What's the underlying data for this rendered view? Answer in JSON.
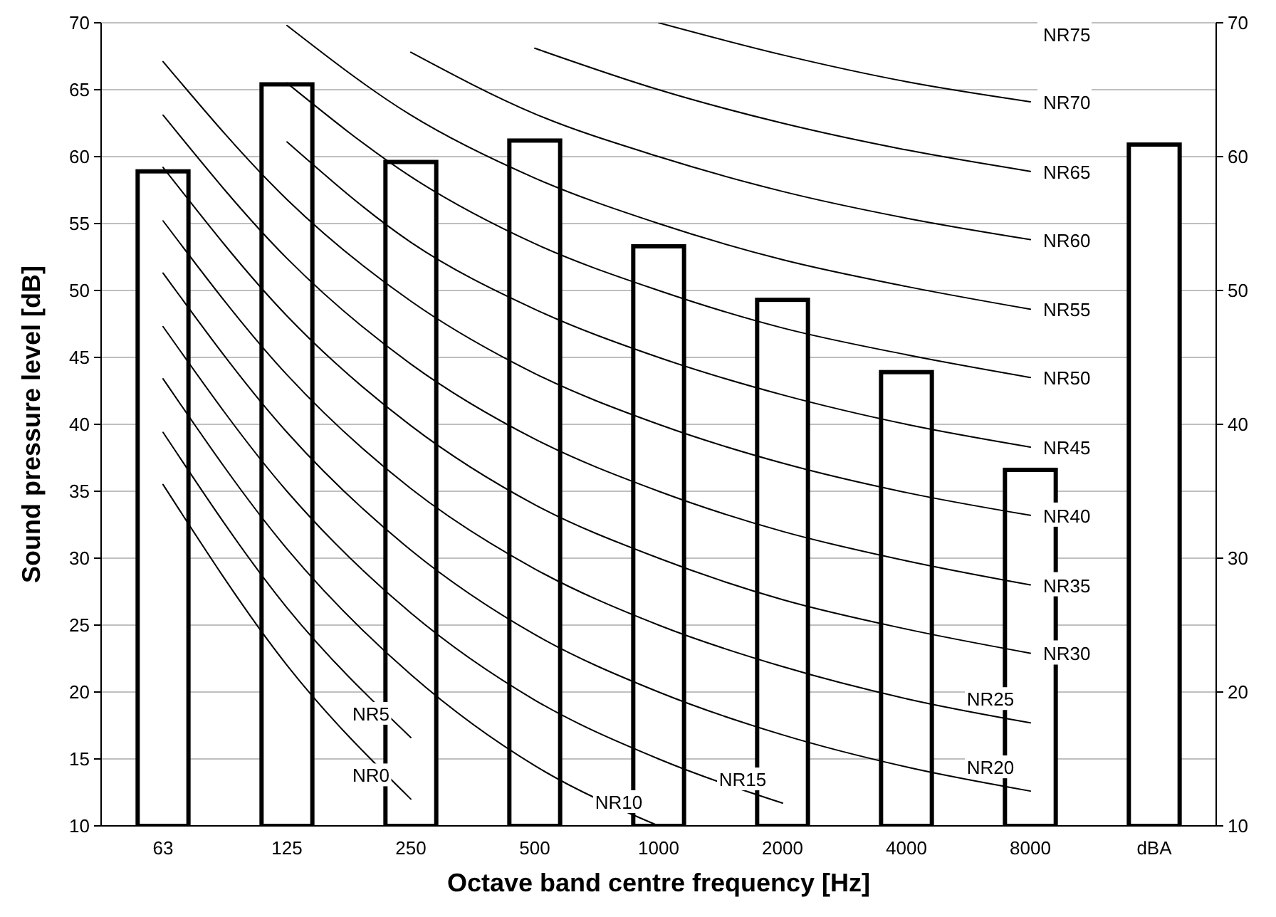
{
  "chart_data": {
    "type": "bar",
    "xlabel": "Octave band centre frequency [Hz]",
    "ylabel": "Sound pressure level [dB]",
    "categories": [
      "63",
      "125",
      "250",
      "500",
      "1000",
      "2000",
      "4000",
      "8000",
      "dBA"
    ],
    "ylim": [
      10,
      70
    ],
    "yticks": [
      10,
      15,
      20,
      25,
      30,
      35,
      40,
      45,
      50,
      55,
      60,
      65,
      70
    ],
    "y2lim": [
      10,
      70
    ],
    "y2ticks": [
      10,
      20,
      30,
      40,
      50,
      60,
      70
    ],
    "grid": "y",
    "legend": false,
    "marker": "none",
    "line_style": "solid",
    "series": [
      {
        "type": "bar",
        "color": "#ffffff",
        "values": [
          58.9,
          65.4,
          59.6,
          61.2,
          53.3,
          49.3,
          43.9,
          36.6,
          60.9
        ]
      },
      {
        "type": "line",
        "name": "NR0",
        "color": "#000000",
        "values": [
          35.5,
          22,
          12,
          null,
          null,
          null,
          null,
          null,
          null
        ]
      },
      {
        "type": "line",
        "name": "NR5",
        "color": "#000000",
        "values": [
          39.4,
          26.3,
          16.6,
          null,
          null,
          null,
          null,
          null,
          null
        ]
      },
      {
        "type": "line",
        "name": "NR10",
        "color": "#000000",
        "values": [
          43.4,
          30.7,
          21.3,
          14.5,
          10,
          null,
          null,
          null,
          null
        ]
      },
      {
        "type": "line",
        "name": "NR15",
        "color": "#000000",
        "values": [
          47.3,
          35,
          25.9,
          19.4,
          15,
          11.7,
          null,
          null,
          null
        ]
      },
      {
        "type": "line",
        "name": "NR20",
        "color": "#000000",
        "values": [
          51.3,
          39.4,
          30.6,
          24.3,
          20,
          16.8,
          14.4,
          12.6,
          null
        ]
      },
      {
        "type": "line",
        "name": "NR25",
        "color": "#000000",
        "values": [
          55.2,
          43.7,
          35.2,
          29.2,
          25,
          21.9,
          19.5,
          17.7,
          null
        ]
      },
      {
        "type": "line",
        "name": "NR30",
        "color": "#000000",
        "values": [
          59.2,
          48.1,
          39.9,
          34,
          30,
          26.9,
          24.7,
          22.9,
          null
        ]
      },
      {
        "type": "line",
        "name": "NR35",
        "color": "#000000",
        "values": [
          63.1,
          52.4,
          44.5,
          38.9,
          35,
          32,
          29.8,
          28,
          null
        ]
      },
      {
        "type": "line",
        "name": "NR40",
        "color": "#000000",
        "values": [
          67.1,
          56.8,
          49.2,
          43.8,
          40,
          37.1,
          34.9,
          33.2,
          null
        ]
      },
      {
        "type": "line",
        "name": "NR45",
        "color": "#000000",
        "values": [
          null,
          61.1,
          53.6,
          48.6,
          45,
          42.2,
          40,
          38.3,
          null
        ]
      },
      {
        "type": "line",
        "name": "NR50",
        "color": "#000000",
        "values": [
          null,
          65.5,
          58.5,
          53.5,
          50,
          47.2,
          45.2,
          43.5,
          null
        ]
      },
      {
        "type": "line",
        "name": "NR55",
        "color": "#000000",
        "values": [
          null,
          69.8,
          63.1,
          58.4,
          55,
          52.3,
          50.3,
          48.6,
          null
        ]
      },
      {
        "type": "line",
        "name": "NR60",
        "color": "#000000",
        "values": [
          null,
          null,
          67.8,
          63.2,
          60,
          57.4,
          55.4,
          53.8,
          null
        ]
      },
      {
        "type": "line",
        "name": "NR65",
        "color": "#000000",
        "values": [
          null,
          null,
          null,
          68.1,
          65,
          62.5,
          60.5,
          58.9,
          null
        ]
      },
      {
        "type": "line",
        "name": "NR70",
        "color": "#000000",
        "values": [
          null,
          null,
          null,
          null,
          70,
          67.6,
          65.6,
          64.1,
          null
        ]
      }
    ],
    "annotations": [
      "NR75"
    ]
  }
}
